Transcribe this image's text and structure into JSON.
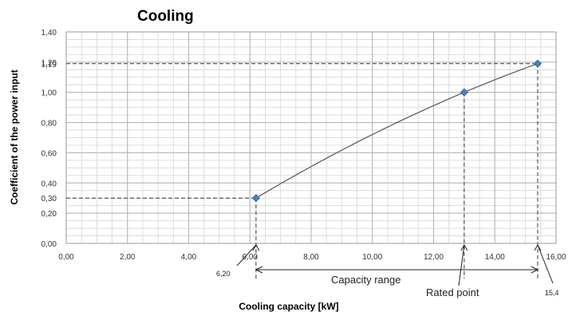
{
  "chart_data": {
    "type": "line",
    "title": "Cooling",
    "xlabel": "Cooling capacity [kW]",
    "ylabel": "Coefficient of the power input",
    "xlim": [
      0,
      16
    ],
    "ylim": [
      0,
      1.4
    ],
    "x_ticks": [
      "0,00",
      "2,00",
      "4,00",
      "6,00",
      "8,00",
      "10,00",
      "12,00",
      "14,00",
      "16,00"
    ],
    "y_ticks": [
      "0,00",
      "0,20",
      "0,40",
      "0,60",
      "0,80",
      "1,00",
      "1,20",
      "1,40"
    ],
    "y_extra_ticks": [
      "0,30",
      "1,19"
    ],
    "grid": true,
    "series": [
      {
        "color": "#4a7fc1",
        "points": [
          {
            "x": 6.2,
            "y": 0.3
          },
          {
            "x": 13.0,
            "y": 1.0
          },
          {
            "x": 15.4,
            "y": 1.19
          }
        ]
      }
    ],
    "annotations": {
      "min_label": "6,20",
      "max_label": "15,4",
      "range_label": "Capacity range",
      "rated_label": "Rated point"
    }
  }
}
